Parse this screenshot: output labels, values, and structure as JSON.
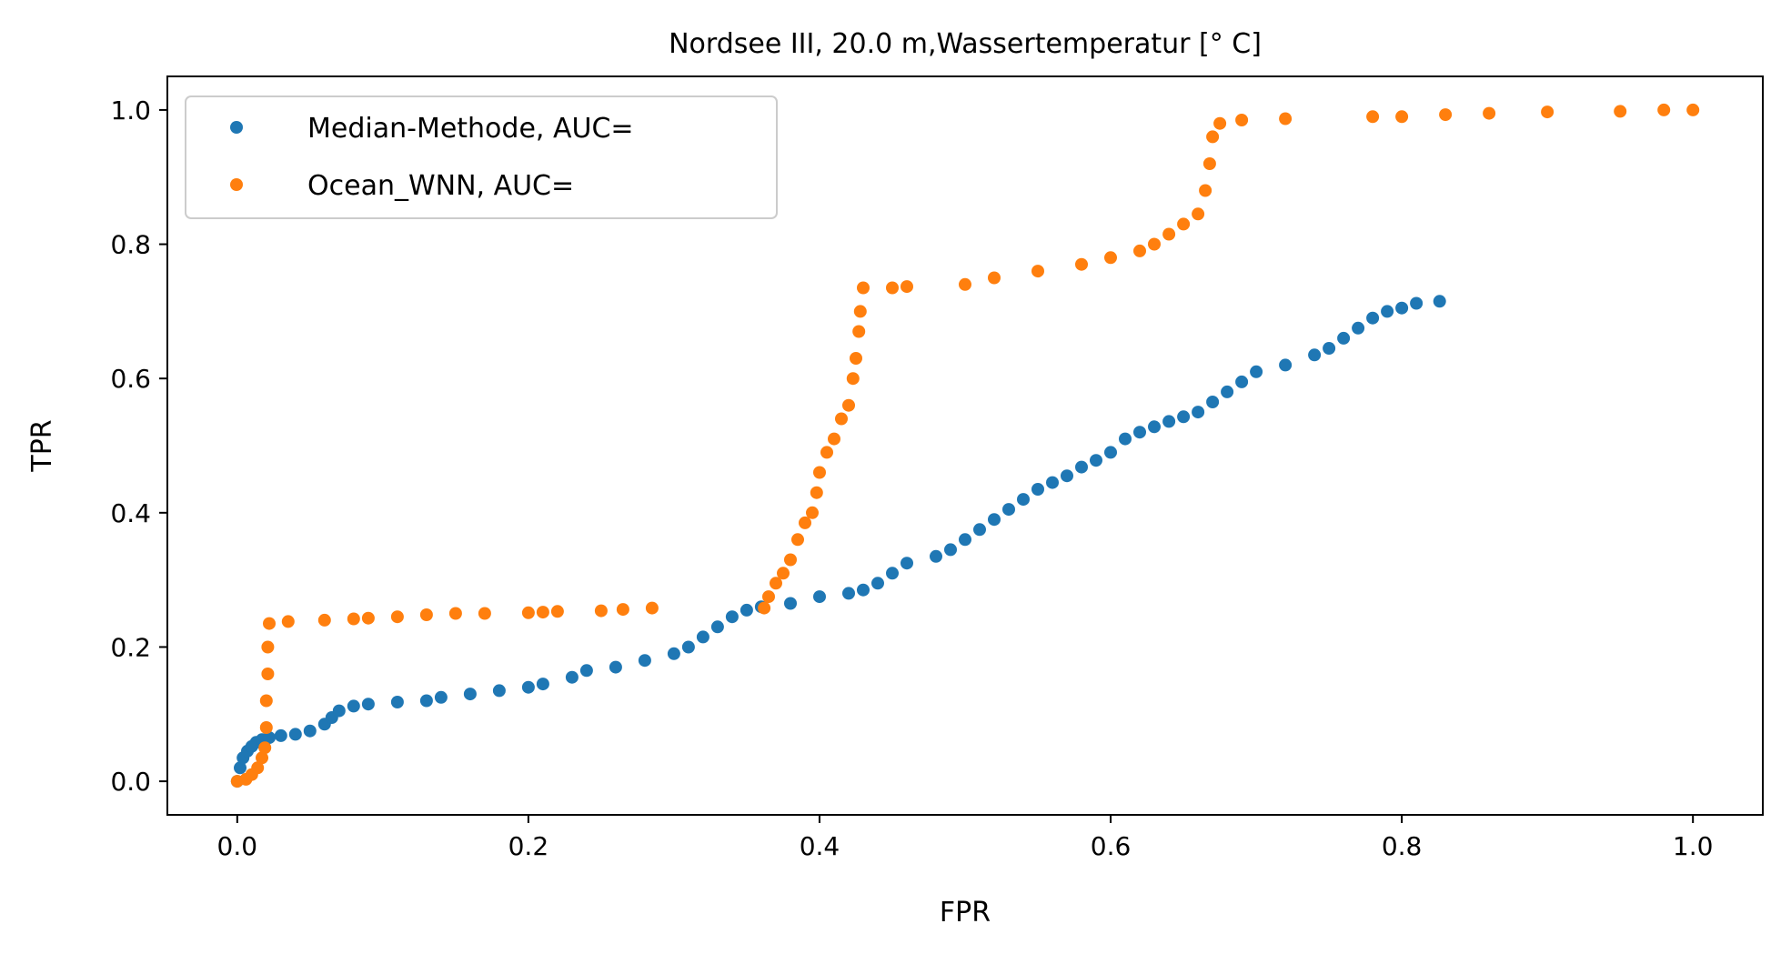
{
  "chart_data": {
    "type": "scatter",
    "title": "Nordsee III, 20.0 m,Wassertemperatur [° C]",
    "xlabel": "FPR",
    "ylabel": "TPR",
    "xlim": [
      -0.048,
      1.048
    ],
    "ylim": [
      -0.05,
      1.05
    ],
    "x_ticks": [
      0.0,
      0.2,
      0.4,
      0.6,
      0.8,
      1.0
    ],
    "x_tick_labels": [
      "0.0",
      "0.2",
      "0.4",
      "0.6",
      "0.8",
      "1.0"
    ],
    "y_ticks": [
      0.0,
      0.2,
      0.4,
      0.6,
      0.8,
      1.0
    ],
    "y_tick_labels": [
      "0.0",
      "0.2",
      "0.4",
      "0.6",
      "0.8",
      "1.0"
    ],
    "grid": false,
    "legend_position": "top-left",
    "series": [
      {
        "name": "Median-Methode, AUC=",
        "color": "#1f77b4",
        "points": [
          [
            0.0,
            0.0
          ],
          [
            0.002,
            0.02
          ],
          [
            0.004,
            0.035
          ],
          [
            0.007,
            0.045
          ],
          [
            0.01,
            0.052
          ],
          [
            0.013,
            0.058
          ],
          [
            0.017,
            0.062
          ],
          [
            0.022,
            0.065
          ],
          [
            0.03,
            0.068
          ],
          [
            0.04,
            0.07
          ],
          [
            0.05,
            0.075
          ],
          [
            0.06,
            0.085
          ],
          [
            0.065,
            0.095
          ],
          [
            0.07,
            0.105
          ],
          [
            0.08,
            0.112
          ],
          [
            0.09,
            0.115
          ],
          [
            0.11,
            0.118
          ],
          [
            0.13,
            0.12
          ],
          [
            0.14,
            0.125
          ],
          [
            0.16,
            0.13
          ],
          [
            0.18,
            0.135
          ],
          [
            0.2,
            0.14
          ],
          [
            0.21,
            0.145
          ],
          [
            0.23,
            0.155
          ],
          [
            0.24,
            0.165
          ],
          [
            0.26,
            0.17
          ],
          [
            0.28,
            0.18
          ],
          [
            0.3,
            0.19
          ],
          [
            0.31,
            0.2
          ],
          [
            0.32,
            0.215
          ],
          [
            0.33,
            0.23
          ],
          [
            0.34,
            0.245
          ],
          [
            0.35,
            0.255
          ],
          [
            0.36,
            0.26
          ],
          [
            0.38,
            0.265
          ],
          [
            0.4,
            0.275
          ],
          [
            0.42,
            0.28
          ],
          [
            0.43,
            0.285
          ],
          [
            0.44,
            0.295
          ],
          [
            0.45,
            0.31
          ],
          [
            0.46,
            0.325
          ],
          [
            0.48,
            0.335
          ],
          [
            0.49,
            0.345
          ],
          [
            0.5,
            0.36
          ],
          [
            0.51,
            0.375
          ],
          [
            0.52,
            0.39
          ],
          [
            0.53,
            0.405
          ],
          [
            0.54,
            0.42
          ],
          [
            0.55,
            0.435
          ],
          [
            0.56,
            0.445
          ],
          [
            0.57,
            0.455
          ],
          [
            0.58,
            0.468
          ],
          [
            0.59,
            0.478
          ],
          [
            0.6,
            0.49
          ],
          [
            0.61,
            0.51
          ],
          [
            0.62,
            0.52
          ],
          [
            0.63,
            0.528
          ],
          [
            0.64,
            0.536
          ],
          [
            0.65,
            0.543
          ],
          [
            0.66,
            0.55
          ],
          [
            0.67,
            0.565
          ],
          [
            0.68,
            0.58
          ],
          [
            0.69,
            0.595
          ],
          [
            0.7,
            0.61
          ],
          [
            0.72,
            0.62
          ],
          [
            0.74,
            0.635
          ],
          [
            0.75,
            0.645
          ],
          [
            0.76,
            0.66
          ],
          [
            0.77,
            0.675
          ],
          [
            0.78,
            0.69
          ],
          [
            0.79,
            0.7
          ],
          [
            0.8,
            0.705
          ],
          [
            0.81,
            0.712
          ],
          [
            0.826,
            0.715
          ]
        ]
      },
      {
        "name": "Ocean_WNN, AUC=",
        "color": "#ff7f0e",
        "points": [
          [
            0.0,
            0.0
          ],
          [
            0.006,
            0.003
          ],
          [
            0.01,
            0.01
          ],
          [
            0.014,
            0.02
          ],
          [
            0.017,
            0.035
          ],
          [
            0.019,
            0.05
          ],
          [
            0.02,
            0.08
          ],
          [
            0.02,
            0.12
          ],
          [
            0.021,
            0.16
          ],
          [
            0.021,
            0.2
          ],
          [
            0.022,
            0.235
          ],
          [
            0.035,
            0.238
          ],
          [
            0.06,
            0.24
          ],
          [
            0.08,
            0.242
          ],
          [
            0.09,
            0.243
          ],
          [
            0.11,
            0.245
          ],
          [
            0.13,
            0.248
          ],
          [
            0.15,
            0.25
          ],
          [
            0.17,
            0.25
          ],
          [
            0.2,
            0.251
          ],
          [
            0.21,
            0.252
          ],
          [
            0.22,
            0.253
          ],
          [
            0.25,
            0.254
          ],
          [
            0.265,
            0.256
          ],
          [
            0.285,
            0.258
          ],
          [
            0.362,
            0.258
          ],
          [
            0.365,
            0.275
          ],
          [
            0.37,
            0.295
          ],
          [
            0.375,
            0.31
          ],
          [
            0.38,
            0.33
          ],
          [
            0.385,
            0.36
          ],
          [
            0.39,
            0.385
          ],
          [
            0.395,
            0.4
          ],
          [
            0.398,
            0.43
          ],
          [
            0.4,
            0.46
          ],
          [
            0.405,
            0.49
          ],
          [
            0.41,
            0.51
          ],
          [
            0.415,
            0.54
          ],
          [
            0.42,
            0.56
          ],
          [
            0.423,
            0.6
          ],
          [
            0.425,
            0.63
          ],
          [
            0.427,
            0.67
          ],
          [
            0.428,
            0.7
          ],
          [
            0.43,
            0.735
          ],
          [
            0.45,
            0.735
          ],
          [
            0.46,
            0.737
          ],
          [
            0.5,
            0.74
          ],
          [
            0.52,
            0.75
          ],
          [
            0.55,
            0.76
          ],
          [
            0.58,
            0.77
          ],
          [
            0.6,
            0.78
          ],
          [
            0.62,
            0.79
          ],
          [
            0.63,
            0.8
          ],
          [
            0.64,
            0.815
          ],
          [
            0.65,
            0.83
          ],
          [
            0.66,
            0.845
          ],
          [
            0.665,
            0.88
          ],
          [
            0.668,
            0.92
          ],
          [
            0.67,
            0.96
          ],
          [
            0.675,
            0.98
          ],
          [
            0.69,
            0.985
          ],
          [
            0.72,
            0.987
          ],
          [
            0.78,
            0.99
          ],
          [
            0.8,
            0.99
          ],
          [
            0.83,
            0.993
          ],
          [
            0.86,
            0.995
          ],
          [
            0.9,
            0.997
          ],
          [
            0.95,
            0.998
          ],
          [
            0.98,
            1.0
          ],
          [
            1.0,
            1.0
          ]
        ]
      }
    ]
  }
}
